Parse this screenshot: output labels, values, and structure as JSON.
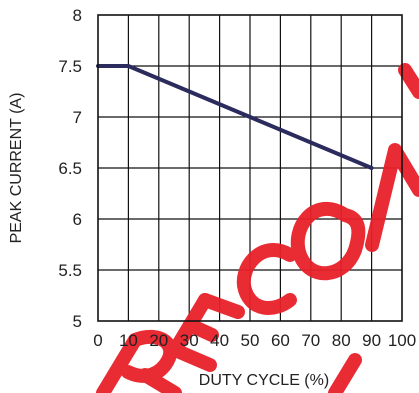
{
  "chart_data": {
    "type": "line",
    "xlabel": "DUTY CYCLE (%)",
    "ylabel": "PEAK CURRENT (A)",
    "xlim": [
      0,
      100
    ],
    "ylim": [
      5,
      8
    ],
    "x_ticks": [
      "0",
      "10",
      "20",
      "30",
      "40",
      "50",
      "60",
      "70",
      "80",
      "90",
      "100"
    ],
    "y_ticks": [
      "5",
      "5.5",
      "6",
      "6.5",
      "7",
      "7.5",
      "8"
    ],
    "grid": true,
    "series": [
      {
        "x": [
          0,
          10,
          90
        ],
        "y": [
          7.5,
          7.5,
          6.5
        ]
      }
    ],
    "colors": {
      "series": "#2b2b5e",
      "watermark": "#e8202a"
    },
    "watermark_text": "RECOMMENDED"
  }
}
